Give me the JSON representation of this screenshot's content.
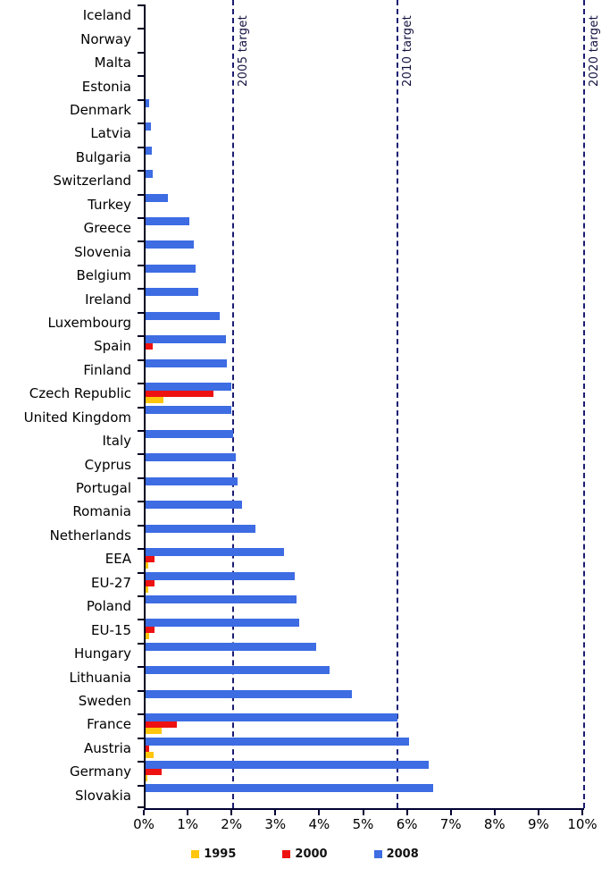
{
  "chart_data": {
    "type": "bar",
    "orientation": "horizontal",
    "title": "",
    "xlabel": "",
    "ylabel": "",
    "xlim": [
      0,
      10
    ],
    "x_tick_labels": [
      "0%",
      "1%",
      "2%",
      "3%",
      "4%",
      "5%",
      "6%",
      "7%",
      "8%",
      "9%",
      "10%"
    ],
    "grid": false,
    "legend_position": "bottom-center",
    "categories": [
      "Iceland",
      "Norway",
      "Malta",
      "Estonia",
      "Denmark",
      "Latvia",
      "Bulgaria",
      "Switzerland",
      "Turkey",
      "Greece",
      "Slovenia",
      "Belgium",
      "Ireland",
      "Luxembourg",
      "Spain",
      "Finland",
      "Czech Republic",
      "United Kingdom",
      "Italy",
      "Cyprus",
      "Portugal",
      "Romania",
      "Netherlands",
      "EEA",
      "EU-27",
      "Poland",
      "EU-15",
      "Hungary",
      "Lithuania",
      "Sweden",
      "France",
      "Austria",
      "Germany",
      "Slovakia"
    ],
    "series": [
      {
        "name": "1995",
        "color": "#FFC60D",
        "values": [
          0,
          0,
          0,
          0,
          0,
          0,
          0,
          0,
          0,
          0,
          0,
          0,
          0,
          0,
          0,
          0,
          0.4,
          0,
          0,
          0,
          0,
          0,
          0,
          0.07,
          0.07,
          0,
          0.08,
          0,
          0,
          0,
          0.37,
          0.18,
          0.04,
          0
        ]
      },
      {
        "name": "2000",
        "color": "#EE1111",
        "values": [
          0,
          0,
          0,
          0,
          0,
          0,
          0,
          0,
          0,
          0,
          0,
          0,
          0,
          0,
          0.17,
          0,
          1.55,
          0,
          0,
          0,
          0,
          0,
          0,
          0.2,
          0.2,
          0,
          0.2,
          0,
          0,
          0,
          0.72,
          0.08,
          0.37,
          0
        ]
      },
      {
        "name": "2008",
        "color": "#3D6CE3",
        "values": [
          0,
          0,
          0,
          0,
          0.08,
          0.12,
          0.15,
          0.17,
          0.5,
          1.0,
          1.1,
          1.15,
          1.2,
          1.7,
          1.83,
          1.85,
          1.95,
          1.95,
          2.0,
          2.05,
          2.1,
          2.2,
          2.5,
          3.15,
          3.4,
          3.45,
          3.5,
          3.9,
          4.2,
          4.7,
          5.75,
          6.0,
          6.45,
          6.55
        ]
      }
    ],
    "target_lines": [
      {
        "label": "2005 target",
        "value": 2
      },
      {
        "label": "2010 target",
        "value": 5.75
      },
      {
        "label": "2020 target",
        "value": 10
      }
    ],
    "colors": {
      "bar_1995": "#FFC60D",
      "bar_2000": "#EE1111",
      "bar_2008": "#3D6CE3",
      "target_line": "#1b1b70",
      "axis": "#000033",
      "text": "#000000"
    }
  }
}
